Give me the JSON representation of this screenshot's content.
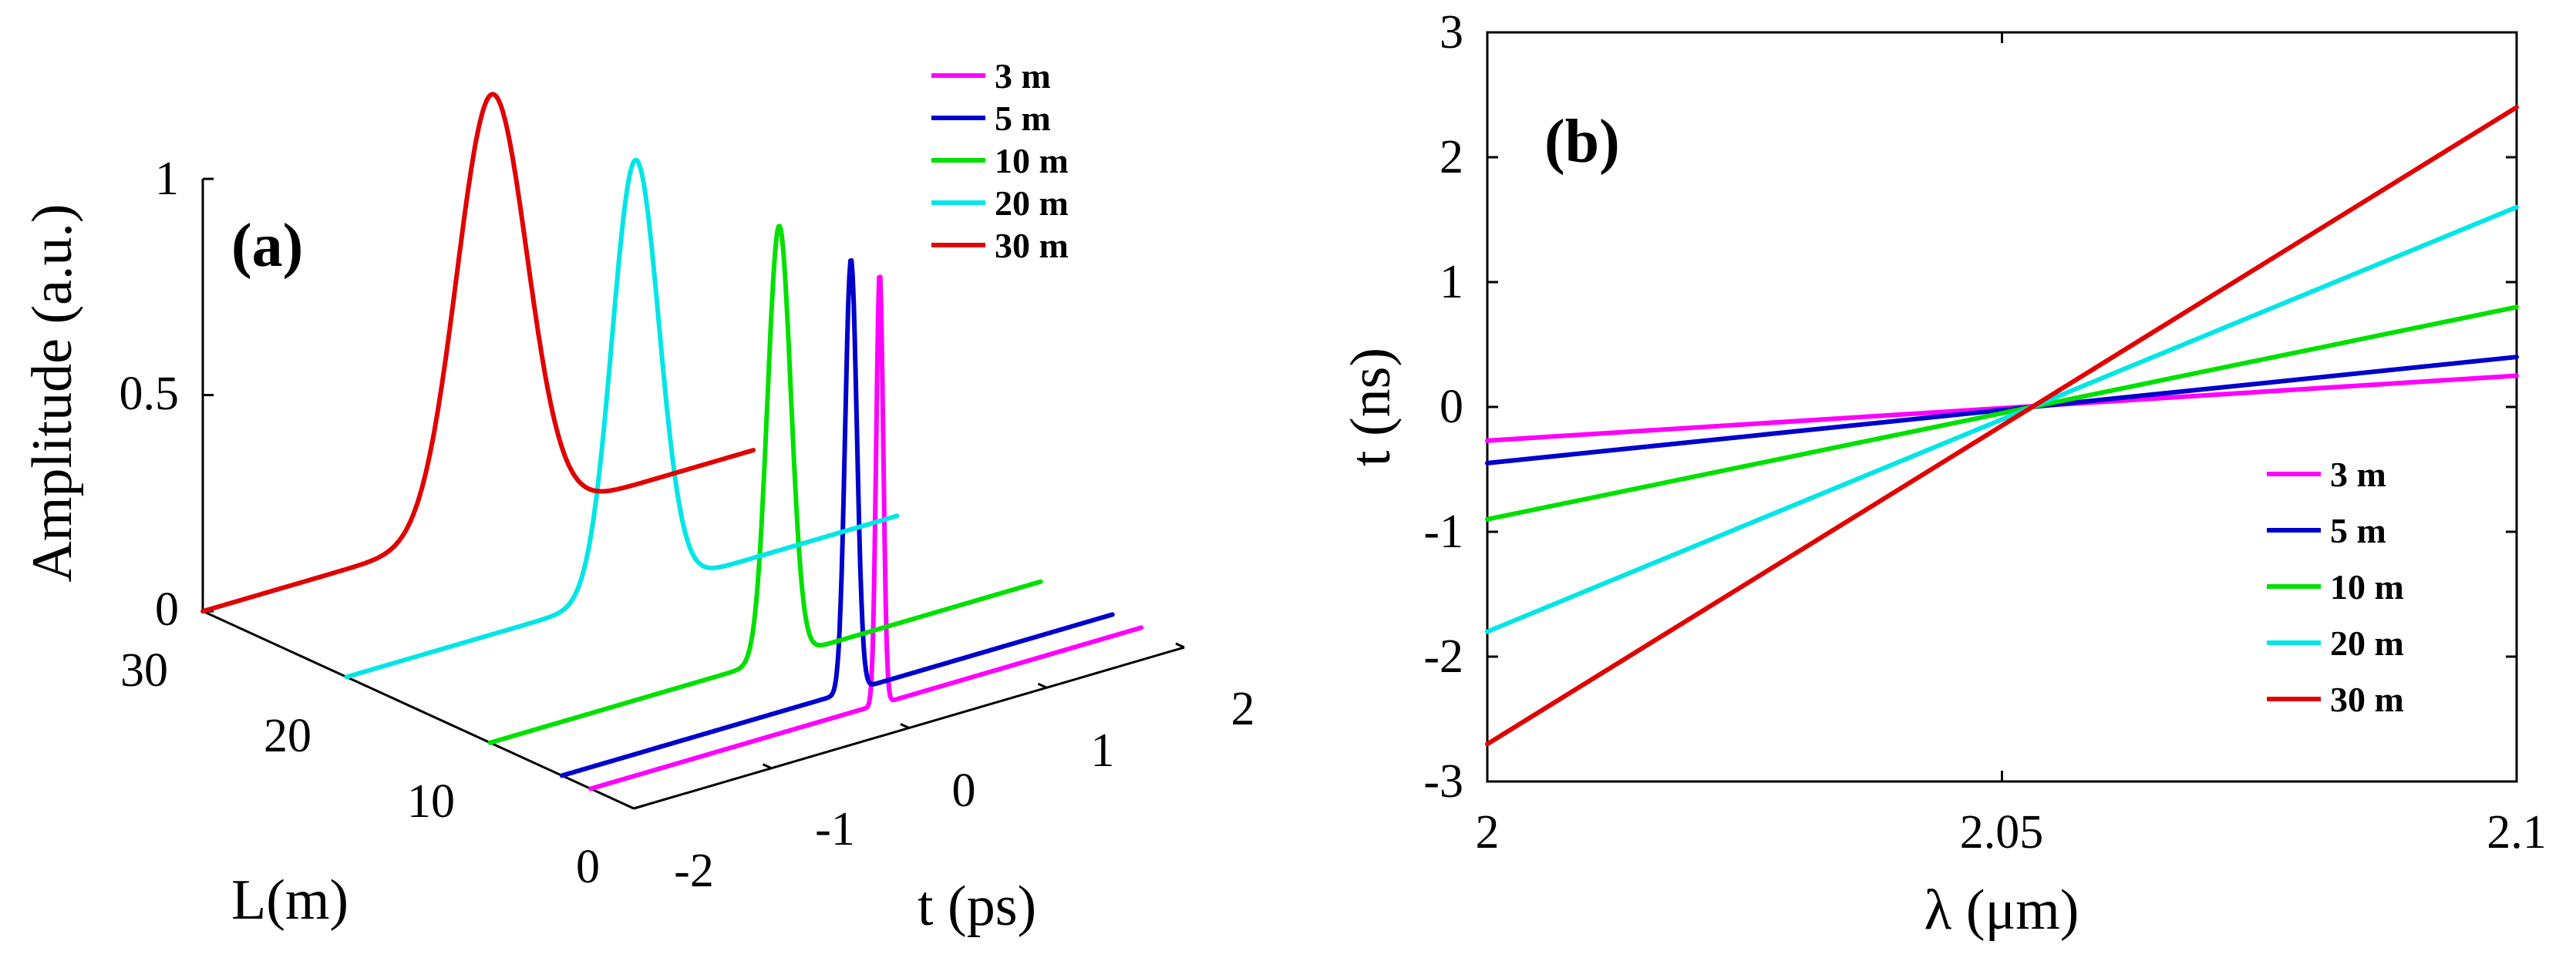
{
  "chart_data": [
    {
      "panel_label": "(a)",
      "type": "line",
      "projection": "3d-waterfall",
      "xlabel": "t (ps)",
      "ylabel": "L(m)",
      "zlabel": "Amplitude (a.u.)",
      "xlim": [
        -2,
        2
      ],
      "ylim": [
        0,
        30
      ],
      "zlim": [
        0,
        1
      ],
      "x_ticks": [
        "-2",
        "-1",
        "0",
        "1",
        "2"
      ],
      "y_ticks": [
        "0",
        "10",
        "20",
        "30"
      ],
      "z_ticks": [
        "0",
        "0.5",
        "1"
      ],
      "legend_position": "top-right",
      "series": [
        {
          "name": "3 m",
          "L": 3,
          "color": "#ff00ff",
          "peak_time_ps": 0.1,
          "peak_amplitude": 1,
          "fwhm_ps": 0.06
        },
        {
          "name": "5 m",
          "L": 5,
          "color": "#0000cc",
          "peak_time_ps": 0.1,
          "peak_amplitude": 1,
          "fwhm_ps": 0.1
        },
        {
          "name": "10 m",
          "L": 10,
          "color": "#00e000",
          "peak_time_ps": 0.1,
          "peak_amplitude": 1,
          "fwhm_ps": 0.2
        },
        {
          "name": "20 m",
          "L": 20,
          "color": "#00e5e5",
          "peak_time_ps": 0.1,
          "peak_amplitude": 1,
          "fwhm_ps": 0.4
        },
        {
          "name": "30 m",
          "L": 30,
          "color": "#e00000",
          "peak_time_ps": 0.1,
          "peak_amplitude": 1,
          "fwhm_ps": 0.6
        }
      ]
    },
    {
      "panel_label": "(b)",
      "type": "line",
      "xlabel": "λ (μm)",
      "ylabel": "t (ns)",
      "xlim": [
        2,
        2.1
      ],
      "ylim": [
        -3,
        3
      ],
      "x_ticks": [
        "2",
        "2.05",
        "2.1"
      ],
      "y_ticks": [
        "-3",
        "-2",
        "-1",
        "0",
        "1",
        "2",
        "3"
      ],
      "legend_position": "bottom-right",
      "series": [
        {
          "name": "3 m",
          "color": "#ff00ff",
          "x": [
            2,
            2.1
          ],
          "y": [
            -0.27,
            0.25
          ]
        },
        {
          "name": "5 m",
          "color": "#0000cc",
          "x": [
            2,
            2.1
          ],
          "y": [
            -0.45,
            0.4
          ]
        },
        {
          "name": "10 m",
          "color": "#00e000",
          "x": [
            2,
            2.1
          ],
          "y": [
            -0.9,
            0.8
          ]
        },
        {
          "name": "20 m",
          "color": "#00e5e5",
          "x": [
            2,
            2.1
          ],
          "y": [
            -1.8,
            1.6
          ]
        },
        {
          "name": "30 m",
          "color": "#e00000",
          "x": [
            2,
            2.1
          ],
          "y": [
            -2.7,
            2.4
          ]
        }
      ]
    }
  ]
}
